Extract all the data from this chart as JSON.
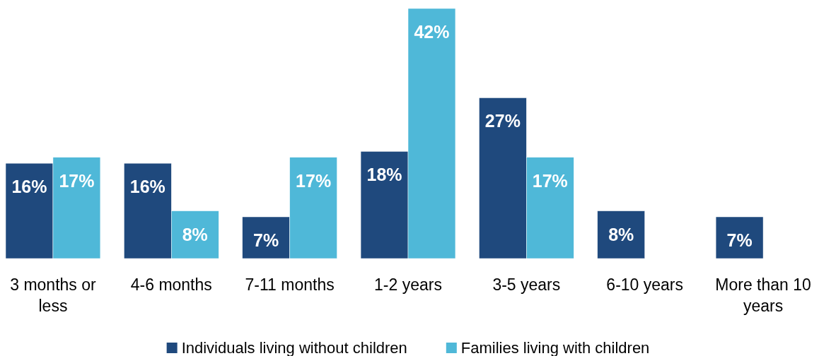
{
  "chart_data": {
    "type": "bar",
    "categories": [
      "3 months or less",
      "4-6 months",
      "7-11 months",
      "1-2 years",
      "3-5 years",
      "6-10 years",
      "More than 10 years"
    ],
    "series": [
      {
        "name": "Individuals living without children",
        "color": "#1f497d",
        "values": [
          16,
          16,
          7,
          18,
          27,
          8,
          7
        ],
        "value_labels": [
          "16%",
          "16%",
          "7%",
          "18%",
          "27%",
          "8%",
          "7%"
        ]
      },
      {
        "name": "Families living with children",
        "color": "#4fb8d8",
        "values": [
          17,
          8,
          17,
          42,
          17,
          null,
          null
        ],
        "value_labels": [
          "17%",
          "8%",
          "17%",
          "42%",
          "17%",
          null,
          null
        ]
      }
    ],
    "legend": "bottom"
  }
}
